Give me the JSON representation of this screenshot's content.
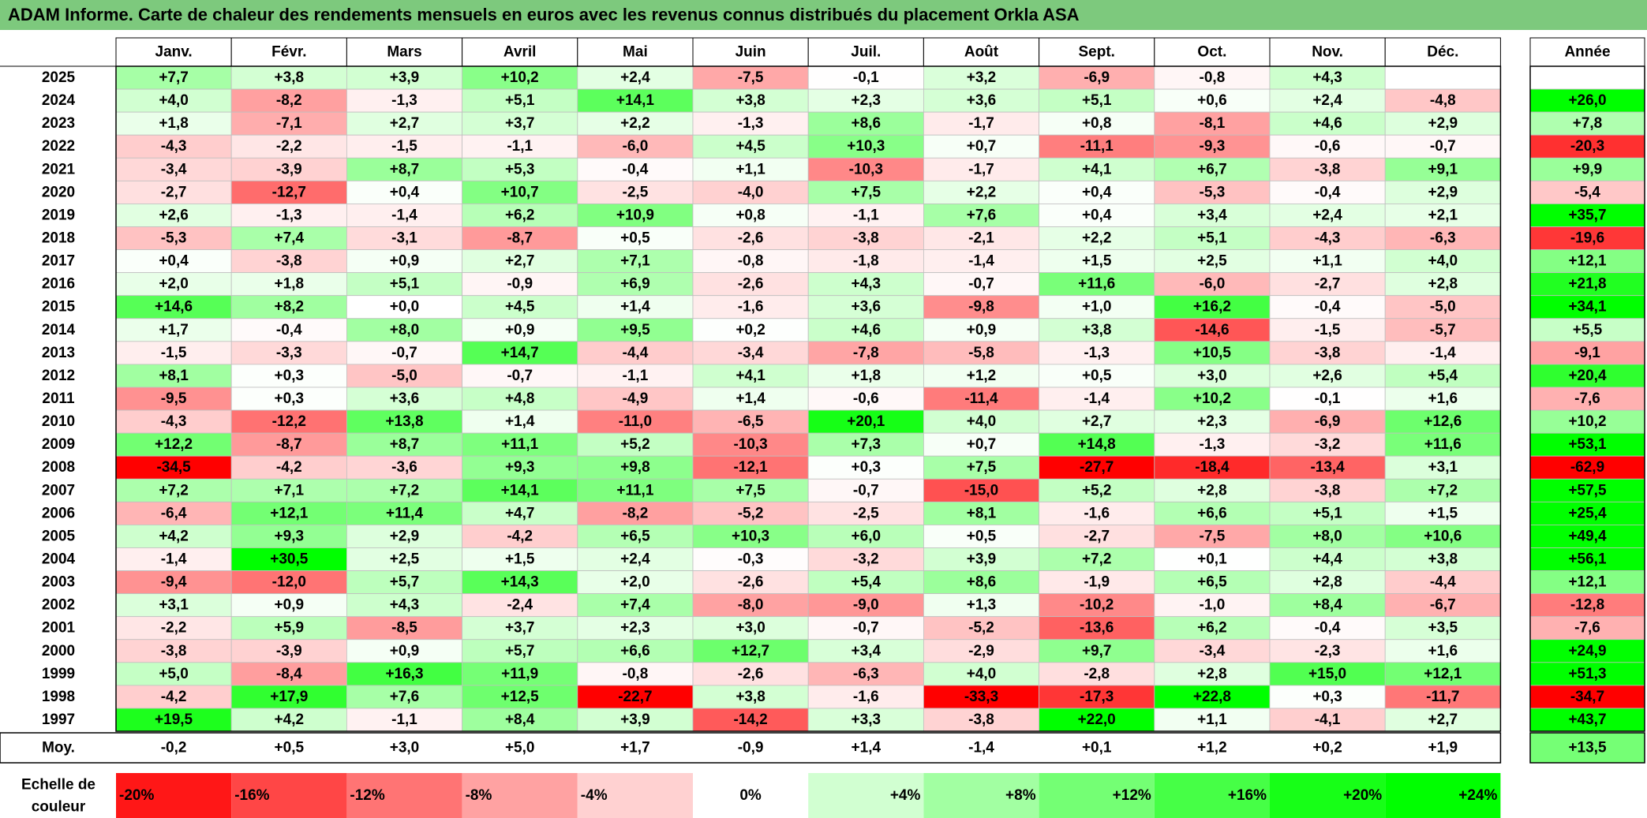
{
  "title": "ADAM Informe. Carte de chaleur des rendements mensuels en euros avec les revenus connus distribués du placement Orkla ASA",
  "chart_data": {
    "type": "heatmap",
    "title": "ADAM Informe. Carte de chaleur des rendements mensuels en euros avec les revenus connus distribués du placement Orkla ASA",
    "columns": [
      "Janv.",
      "Févr.",
      "Mars",
      "Avril",
      "Mai",
      "Juin",
      "Juil.",
      "Août",
      "Sept.",
      "Oct.",
      "Nov.",
      "Déc."
    ],
    "year_header": "Année",
    "rows": [
      {
        "year": "2025",
        "months": [
          "+7,7",
          "+3,8",
          "+3,9",
          "+10,2",
          "+2,4",
          "-7,5",
          "-0,1",
          "+3,2",
          "-6,9",
          "-0,8",
          "+4,3",
          ""
        ],
        "annual": ""
      },
      {
        "year": "2024",
        "months": [
          "+4,0",
          "-8,2",
          "-1,3",
          "+5,1",
          "+14,1",
          "+3,8",
          "+2,3",
          "+3,6",
          "+5,1",
          "+0,6",
          "+2,4",
          "-4,8"
        ],
        "annual": "+26,0"
      },
      {
        "year": "2023",
        "months": [
          "+1,8",
          "-7,1",
          "+2,7",
          "+3,7",
          "+2,2",
          "-1,3",
          "+8,6",
          "-1,7",
          "+0,8",
          "-8,1",
          "+4,6",
          "+2,9"
        ],
        "annual": "+7,8"
      },
      {
        "year": "2022",
        "months": [
          "-4,3",
          "-2,2",
          "-1,5",
          "-1,1",
          "-6,0",
          "+4,5",
          "+10,3",
          "+0,7",
          "-11,1",
          "-9,3",
          "-0,6",
          "-0,7"
        ],
        "annual": "-20,3"
      },
      {
        "year": "2021",
        "months": [
          "-3,4",
          "-3,9",
          "+8,7",
          "+5,3",
          "-0,4",
          "+1,1",
          "-10,3",
          "-1,7",
          "+4,1",
          "+6,7",
          "-3,8",
          "+9,1"
        ],
        "annual": "+9,9"
      },
      {
        "year": "2020",
        "months": [
          "-2,7",
          "-12,7",
          "+0,4",
          "+10,7",
          "-2,5",
          "-4,0",
          "+7,5",
          "+2,2",
          "+0,4",
          "-5,3",
          "-0,4",
          "+2,9"
        ],
        "annual": "-5,4"
      },
      {
        "year": "2019",
        "months": [
          "+2,6",
          "-1,3",
          "-1,4",
          "+6,2",
          "+10,9",
          "+0,8",
          "-1,1",
          "+7,6",
          "+0,4",
          "+3,4",
          "+2,4",
          "+2,1"
        ],
        "annual": "+35,7"
      },
      {
        "year": "2018",
        "months": [
          "-5,3",
          "+7,4",
          "-3,1",
          "-8,7",
          "+0,5",
          "-2,6",
          "-3,8",
          "-2,1",
          "+2,2",
          "+5,1",
          "-4,3",
          "-6,3"
        ],
        "annual": "-19,6"
      },
      {
        "year": "2017",
        "months": [
          "+0,4",
          "-3,8",
          "+0,9",
          "+2,7",
          "+7,1",
          "-0,8",
          "-1,8",
          "-1,4",
          "+1,5",
          "+2,5",
          "+1,1",
          "+4,0"
        ],
        "annual": "+12,1"
      },
      {
        "year": "2016",
        "months": [
          "+2,0",
          "+1,8",
          "+5,1",
          "-0,9",
          "+6,9",
          "-2,6",
          "+4,3",
          "-0,7",
          "+11,6",
          "-6,0",
          "-2,7",
          "+2,8"
        ],
        "annual": "+21,8"
      },
      {
        "year": "2015",
        "months": [
          "+14,6",
          "+8,2",
          "+0,0",
          "+4,5",
          "+1,4",
          "-1,6",
          "+3,6",
          "-9,8",
          "+1,0",
          "+16,2",
          "-0,4",
          "-5,0"
        ],
        "annual": "+34,1"
      },
      {
        "year": "2014",
        "months": [
          "+1,7",
          "-0,4",
          "+8,0",
          "+0,9",
          "+9,5",
          "+0,2",
          "+4,6",
          "+0,9",
          "+3,8",
          "-14,6",
          "-1,5",
          "-5,7"
        ],
        "annual": "+5,5"
      },
      {
        "year": "2013",
        "months": [
          "-1,5",
          "-3,3",
          "-0,7",
          "+14,7",
          "-4,4",
          "-3,4",
          "-7,8",
          "-5,8",
          "-1,3",
          "+10,5",
          "-3,8",
          "-1,4"
        ],
        "annual": "-9,1"
      },
      {
        "year": "2012",
        "months": [
          "+8,1",
          "+0,3",
          "-5,0",
          "-0,7",
          "-1,1",
          "+4,1",
          "+1,8",
          "+1,2",
          "+0,5",
          "+3,0",
          "+2,6",
          "+5,4"
        ],
        "annual": "+20,4"
      },
      {
        "year": "2011",
        "months": [
          "-9,5",
          "+0,3",
          "+3,6",
          "+4,8",
          "-4,9",
          "+1,4",
          "-0,6",
          "-11,4",
          "-1,4",
          "+10,2",
          "-0,1",
          "+1,6"
        ],
        "annual": "-7,6"
      },
      {
        "year": "2010",
        "months": [
          "-4,3",
          "-12,2",
          "+13,8",
          "+1,4",
          "-11,0",
          "-6,5",
          "+20,1",
          "+4,0",
          "+2,7",
          "+2,3",
          "-6,9",
          "+12,6"
        ],
        "annual": "+10,2"
      },
      {
        "year": "2009",
        "months": [
          "+12,2",
          "-8,7",
          "+8,7",
          "+11,1",
          "+5,2",
          "-10,3",
          "+7,3",
          "+0,7",
          "+14,8",
          "-1,3",
          "-3,2",
          "+11,6"
        ],
        "annual": "+53,1"
      },
      {
        "year": "2008",
        "months": [
          "-34,5",
          "-4,2",
          "-3,6",
          "+9,3",
          "+9,8",
          "-12,1",
          "+0,3",
          "+7,5",
          "-27,7",
          "-18,4",
          "-13,4",
          "+3,1"
        ],
        "annual": "-62,9"
      },
      {
        "year": "2007",
        "months": [
          "+7,2",
          "+7,1",
          "+7,2",
          "+14,1",
          "+11,1",
          "+7,5",
          "-0,7",
          "-15,0",
          "+5,2",
          "+2,8",
          "-3,8",
          "+7,2"
        ],
        "annual": "+57,5"
      },
      {
        "year": "2006",
        "months": [
          "-6,4",
          "+12,1",
          "+11,4",
          "+4,7",
          "-8,2",
          "-5,2",
          "-2,5",
          "+8,1",
          "-1,6",
          "+6,6",
          "+5,1",
          "+1,5"
        ],
        "annual": "+25,4"
      },
      {
        "year": "2005",
        "months": [
          "+4,2",
          "+9,3",
          "+2,9",
          "-4,2",
          "+6,5",
          "+10,3",
          "+6,0",
          "+0,5",
          "-2,7",
          "-7,5",
          "+8,0",
          "+10,6"
        ],
        "annual": "+49,4"
      },
      {
        "year": "2004",
        "months": [
          "-1,4",
          "+30,5",
          "+2,5",
          "+1,5",
          "+2,4",
          "-0,3",
          "-3,2",
          "+3,9",
          "+7,2",
          "+0,1",
          "+4,4",
          "+3,8"
        ],
        "annual": "+56,1"
      },
      {
        "year": "2003",
        "months": [
          "-9,4",
          "-12,0",
          "+5,7",
          "+14,3",
          "+2,0",
          "-2,6",
          "+5,4",
          "+8,6",
          "-1,9",
          "+6,5",
          "+2,8",
          "-4,4"
        ],
        "annual": "+12,1"
      },
      {
        "year": "2002",
        "months": [
          "+3,1",
          "+0,9",
          "+4,3",
          "-2,4",
          "+7,4",
          "-8,0",
          "-9,0",
          "+1,3",
          "-10,2",
          "-1,0",
          "+8,4",
          "-6,7"
        ],
        "annual": "-12,8"
      },
      {
        "year": "2001",
        "months": [
          "-2,2",
          "+5,9",
          "-8,5",
          "+3,7",
          "+2,3",
          "+3,0",
          "-0,7",
          "-5,2",
          "-13,6",
          "+6,2",
          "-0,4",
          "+3,5"
        ],
        "annual": "-7,6"
      },
      {
        "year": "2000",
        "months": [
          "-3,8",
          "-3,9",
          "+0,9",
          "+5,7",
          "+6,6",
          "+12,7",
          "+3,4",
          "-2,9",
          "+9,7",
          "-3,4",
          "-2,3",
          "+1,6"
        ],
        "annual": "+24,9"
      },
      {
        "year": "1999",
        "months": [
          "+5,0",
          "-8,4",
          "+16,3",
          "+11,9",
          "-0,8",
          "-2,6",
          "-6,3",
          "+4,0",
          "-2,8",
          "+2,8",
          "+15,0",
          "+12,1"
        ],
        "annual": "+51,3"
      },
      {
        "year": "1998",
        "months": [
          "-4,2",
          "+17,9",
          "+7,6",
          "+12,5",
          "-22,7",
          "+3,8",
          "-1,6",
          "-33,3",
          "-17,3",
          "+22,8",
          "+0,3",
          "-11,7"
        ],
        "annual": "-34,7"
      },
      {
        "year": "1997",
        "months": [
          "+19,5",
          "+4,2",
          "-1,1",
          "+8,4",
          "+3,9",
          "-14,2",
          "+3,3",
          "-3,8",
          "+22,0",
          "+1,1",
          "-4,1",
          "+2,7"
        ],
        "annual": "+43,7"
      }
    ],
    "average": {
      "label": "Moy.",
      "months": [
        "-0,2",
        "+0,5",
        "+3,0",
        "+5,0",
        "+1,7",
        "-0,9",
        "+1,4",
        "-1,4",
        "+0,1",
        "+1,2",
        "+0,2",
        "+1,9"
      ],
      "annual": "+13,5"
    },
    "color_scale": {
      "label": "Echelle de couleur",
      "stops": [
        "-20%",
        "-16%",
        "-12%",
        "-8%",
        "-4%",
        "0%",
        "+4%",
        "+8%",
        "+12%",
        "+16%",
        "+20%",
        "+24%"
      ],
      "values": [
        -20,
        -16,
        -12,
        -8,
        -4,
        0,
        4,
        8,
        12,
        16,
        20,
        24
      ],
      "negative_color": "#ff0000",
      "positive_color": "#00ff00",
      "neutral_color": "#ffffff"
    }
  }
}
